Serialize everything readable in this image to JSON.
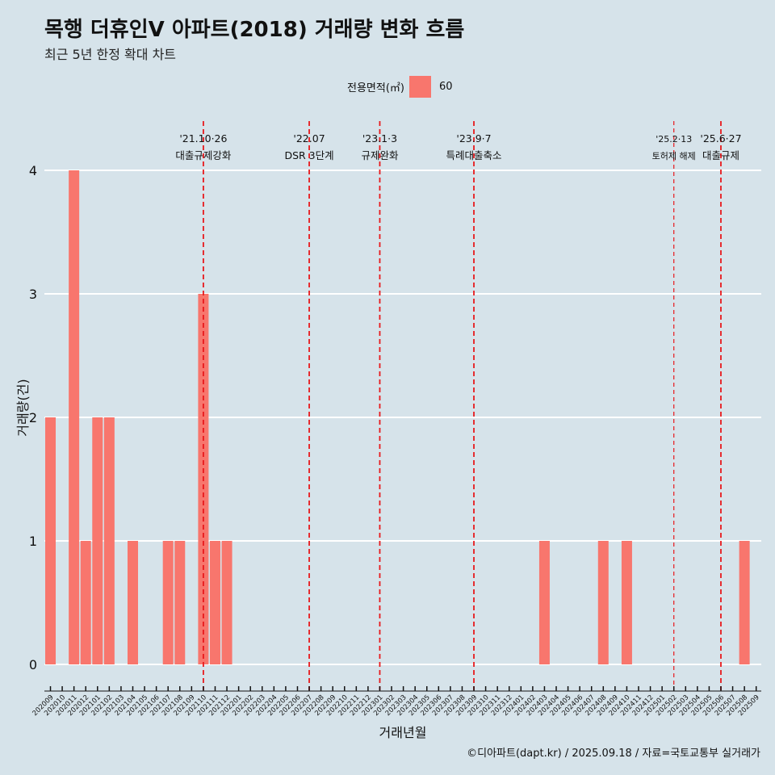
{
  "title": "목행 더휴인V 아파트(2018) 거래량 변화 흐름",
  "subtitle": "최근 5년 한정 확대 차트",
  "caption": "©디아파트(dapt.kr) / 2025.09.18 / 자료=국토교통부 실거래가",
  "legend": {
    "title": "전용면적(㎡)",
    "entries": [
      {
        "label": "60",
        "color": "#f8766d"
      }
    ]
  },
  "colors": {
    "background": "#d6e3ea",
    "bar": "#f8766d",
    "event_line": "#e8191c",
    "grid": "#ffffff"
  },
  "chart_data": {
    "type": "bar",
    "xlabel": "거래년월",
    "ylabel": "거래량(건)",
    "ylim": [
      0,
      4
    ],
    "yticks": [
      0,
      1,
      2,
      3,
      4
    ],
    "series": [
      {
        "name": "60",
        "color": "#f8766d"
      }
    ],
    "categories": [
      "202009",
      "202010",
      "202011",
      "202012",
      "202101",
      "202102",
      "202103",
      "202104",
      "202105",
      "202106",
      "202107",
      "202108",
      "202109",
      "202110",
      "202111",
      "202112",
      "202201",
      "202202",
      "202203",
      "202204",
      "202205",
      "202206",
      "202207",
      "202208",
      "202209",
      "202210",
      "202211",
      "202212",
      "202301",
      "202302",
      "202303",
      "202304",
      "202305",
      "202306",
      "202307",
      "202308",
      "202309",
      "202310",
      "202311",
      "202312",
      "202401",
      "202402",
      "202403",
      "202404",
      "202405",
      "202406",
      "202407",
      "202408",
      "202409",
      "202410",
      "202411",
      "202412",
      "202501",
      "202502",
      "202503",
      "202504",
      "202505",
      "202506",
      "202507",
      "202508",
      "202509"
    ],
    "values": [
      2,
      0,
      4,
      1,
      2,
      2,
      0,
      1,
      0,
      0,
      1,
      1,
      0,
      3,
      1,
      1,
      0,
      0,
      0,
      0,
      0,
      0,
      0,
      0,
      0,
      0,
      0,
      0,
      0,
      0,
      0,
      0,
      0,
      0,
      0,
      0,
      0,
      0,
      0,
      0,
      0,
      0,
      1,
      0,
      0,
      0,
      0,
      1,
      0,
      1,
      0,
      0,
      0,
      0,
      0,
      0,
      0,
      0,
      0,
      1,
      0
    ],
    "events": [
      {
        "category": "202110",
        "date": "'21.10·26",
        "label": "대출규제강화",
        "style": "dashed"
      },
      {
        "category": "202207",
        "date": "'22.07",
        "label": "DSR 3단계",
        "style": "dashed"
      },
      {
        "category": "202301",
        "date": "'23.1·3",
        "label": "규제완화",
        "style": "dashed"
      },
      {
        "category": "202309",
        "date": "'23.9·7",
        "label": "특례대출축소",
        "style": "dashed"
      },
      {
        "category": "202502",
        "date": "'25.2·13",
        "label": "토허제 해제",
        "style": "thin"
      },
      {
        "category": "202506",
        "date": "'25.6·27",
        "label": "대출규제",
        "style": "dashed"
      }
    ]
  }
}
